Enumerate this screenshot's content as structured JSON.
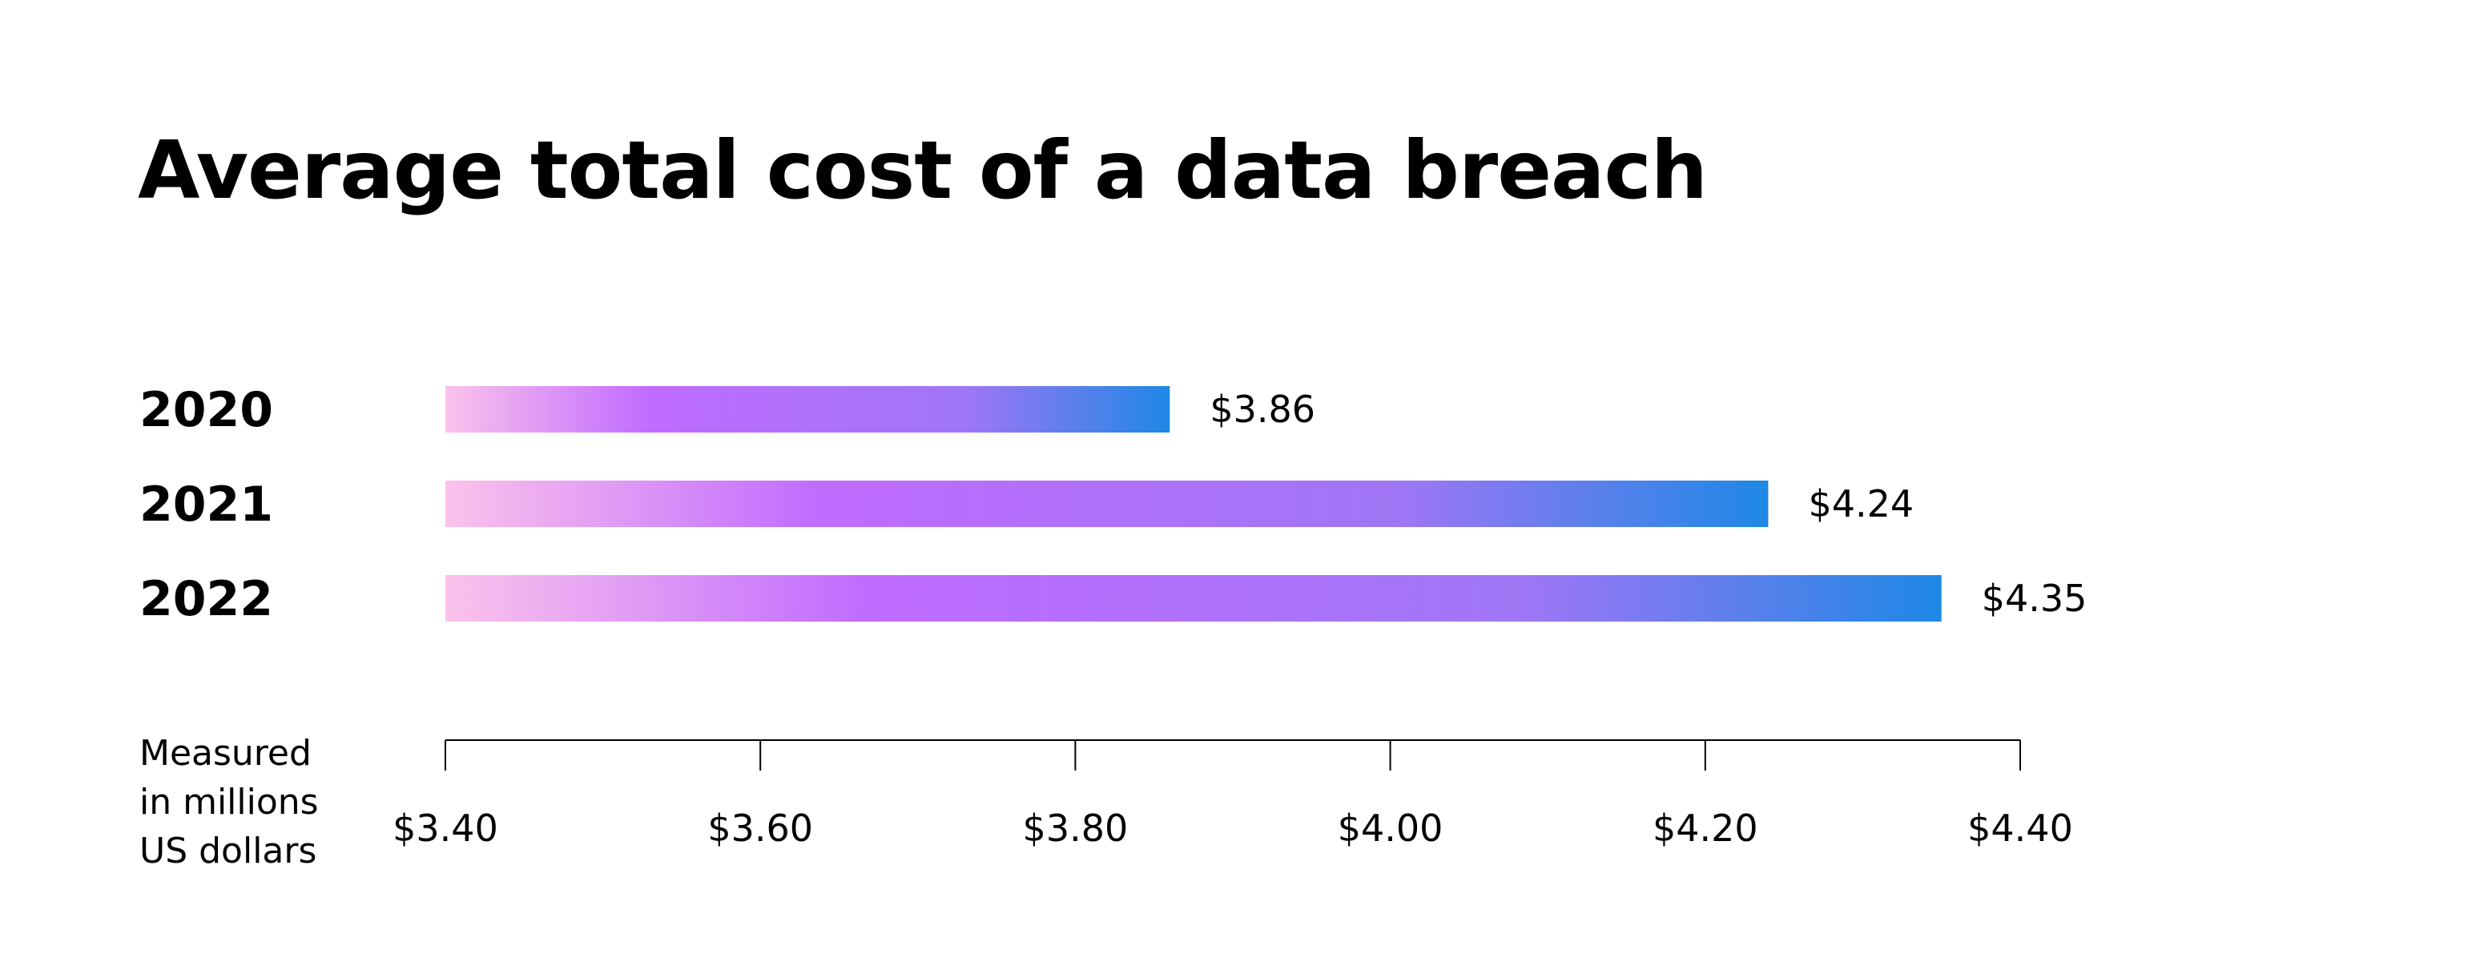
{
  "chart_data": {
    "type": "bar",
    "orientation": "horizontal",
    "title": "Average total cost of a data breach",
    "categories": [
      "2020",
      "2021",
      "2022"
    ],
    "values": [
      3.86,
      4.24,
      4.35
    ],
    "value_labels": [
      "$3.86",
      "$4.24",
      "$4.35"
    ],
    "xlim": [
      3.4,
      4.4
    ],
    "x_ticks": [
      3.4,
      3.6,
      3.8,
      4.0,
      4.2,
      4.4
    ],
    "x_tick_labels": [
      "$3.40",
      "$3.60",
      "$3.80",
      "$4.00",
      "$4.20",
      "$4.40"
    ],
    "axis_note": [
      "Measured",
      "in millions",
      "US dollars"
    ],
    "grid": false,
    "legend": "none",
    "bar_gradient": [
      "#fbc2eb",
      "#c06cff",
      "#9f76f5",
      "#1e88e5"
    ]
  }
}
